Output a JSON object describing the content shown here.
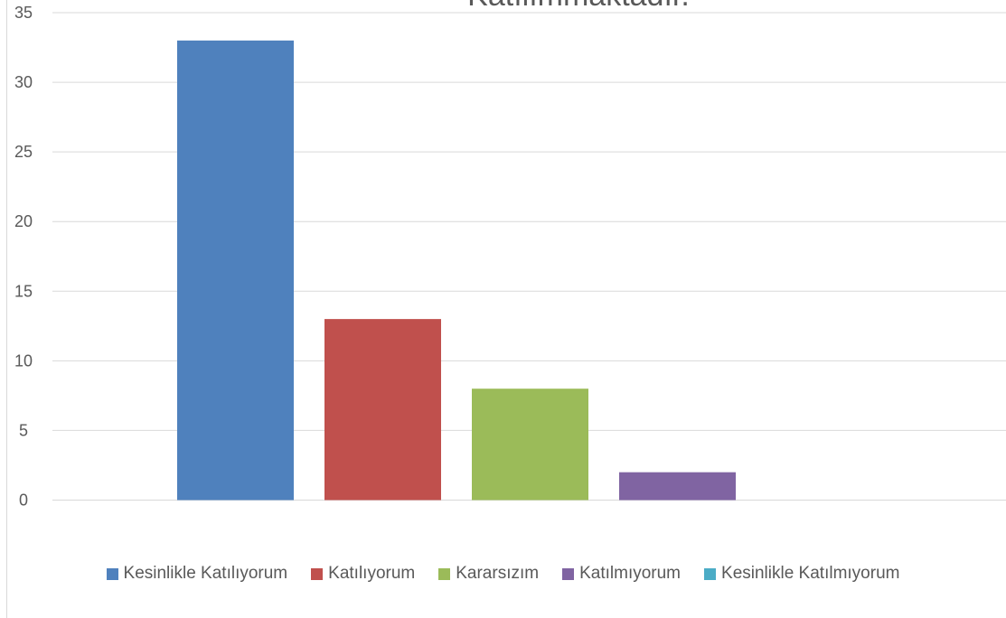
{
  "chart_data": {
    "type": "bar",
    "title": "Katılımmaktadır.",
    "categories": [
      "Kesinlikle Katılıyorum",
      "Katılıyorum",
      "Kararsızım",
      "Katılmıyorum",
      "Kesinlikle Katılmıyorum"
    ],
    "values": [
      33,
      13,
      8,
      2,
      0
    ],
    "colors": [
      "#4f81bd",
      "#c0504d",
      "#9bbb59",
      "#8064a2",
      "#4bacc6"
    ],
    "ylim": [
      0,
      35
    ],
    "yticks": [
      0,
      5,
      10,
      15,
      20,
      25,
      30,
      35
    ],
    "grid": true,
    "legend_position": "bottom"
  }
}
